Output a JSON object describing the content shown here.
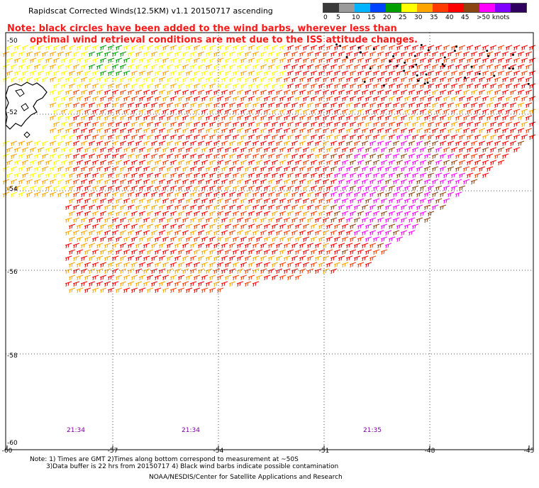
{
  "title": "Rapidscat Corrected Winds(12.5KM) v1.1 20150717 ascending",
  "note_line1": "Note: black circles have been added to the wind barbs, wherever less than",
  "note_line2": "optimal wind retrieval conditions are met due to the ISS attitude changes.",
  "legend": {
    "labels": [
      "0",
      "5",
      "10",
      "15",
      "20",
      "25",
      "30",
      "35",
      "40",
      "45",
      ">50 knots"
    ],
    "colors": [
      "#3a3a3a",
      "#9a9a9a",
      "#00b4ff",
      "#0044ff",
      "#00a000",
      "#ffff00",
      "#ffa500",
      "#ff3c00",
      "#ff0000",
      "#8b4513",
      "#ff00ff",
      "#8000ff",
      "#300060"
    ]
  },
  "axes": {
    "lat_labels": [
      "-50",
      "-52",
      "-54",
      "-56",
      "-58",
      "-60"
    ],
    "lon_labels": [
      "-60",
      "-57",
      "-54",
      "-51",
      "-48",
      "-45"
    ]
  },
  "times": [
    "21:34",
    "21:34",
    "21:35"
  ],
  "footer": {
    "line1": "Note: 1) Times are GMT 2)Times along bottom correspond to measurement at ~50S",
    "line2": "3)Data buffer is 22 hrs from 20150717 4) Black wind barbs indicate possible contamination",
    "line3": "NOAA/NESDIS/Center for Satellite Applications and Research"
  }
}
